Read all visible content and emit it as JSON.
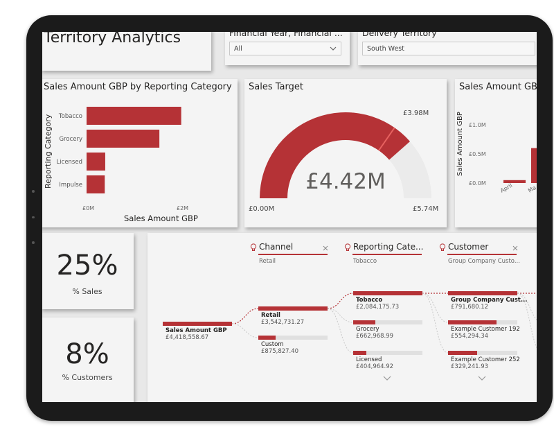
{
  "colors": {
    "accent": "#b53236",
    "panel": "#f4f4f4",
    "canvas": "#e8e8e8",
    "bezel": "#1b1b1b"
  },
  "header": {
    "title": "Territory Analytics"
  },
  "slicers": [
    {
      "label": "Financial Year, Financial ...",
      "value": "All",
      "icon": "chevron-down-icon"
    },
    {
      "label": "Delivery Territory",
      "value": "South West"
    }
  ],
  "bar_chart": {
    "title": "Sales Amount GBP by Reporting Category",
    "ylabel": "Reporting Category",
    "xlabel": "Sales Amount GBP",
    "ticks": [
      "£0M",
      "£2M"
    ]
  },
  "gauge": {
    "title": "Sales Target",
    "value_label": "£4.42M",
    "min_label": "£0.00M",
    "max_label": "£5.74M",
    "target_label": "£3.98M",
    "value": 4.42,
    "min": 0,
    "max": 5.74,
    "target": 3.98
  },
  "column_chart": {
    "title": "Sales Amount GBP",
    "ylabel": "Sales Amount GBP",
    "ticks": [
      "£1.0M",
      "£0.5M",
      "£0.0M"
    ],
    "xlabels": [
      "April",
      "Ma"
    ]
  },
  "kpis": [
    {
      "value": "25%",
      "label": "% Sales"
    },
    {
      "value": "8%",
      "label": "% Customers"
    }
  ],
  "decomp_tree": {
    "levels": [
      {
        "header": "Channel",
        "selected": "Retail",
        "icon": "lightbulb-icon"
      },
      {
        "header": "Reporting Cate...",
        "selected": "Tobacco",
        "icon": "lightbulb-icon"
      },
      {
        "header": "Customer",
        "selected": "Group Company Custo...",
        "icon": "lightbulb-icon"
      }
    ],
    "root": {
      "label": "Sales Amount GBP",
      "value": "£4,418,558.67"
    },
    "channel_nodes": [
      {
        "label": "Retail",
        "value": "£3,542,731.27",
        "fraction": 1.0
      },
      {
        "label": "Custom",
        "value": "£875,827.40",
        "fraction": 0.25
      }
    ],
    "category_nodes": [
      {
        "label": "Tobacco",
        "value": "£2,084,175.73",
        "fraction": 1.0
      },
      {
        "label": "Grocery",
        "value": "£662,968.99",
        "fraction": 0.32
      },
      {
        "label": "Licensed",
        "value": "£404,964.92",
        "fraction": 0.19
      }
    ],
    "customer_nodes": [
      {
        "label": "Group Company Cust...",
        "value": "£791,680.12",
        "fraction": 1.0
      },
      {
        "label": "Example Customer 192",
        "value": "£554,294.34",
        "fraction": 0.7
      },
      {
        "label": "Example Customer 252",
        "value": "£329,241.93",
        "fraction": 0.42
      }
    ]
  },
  "chart_data": [
    {
      "type": "bar",
      "title": "Sales Amount GBP by Reporting Category",
      "categories": [
        "Tobacco",
        "Grocery",
        "Licensed",
        "Impulse"
      ],
      "values": [
        2.08,
        1.6,
        0.41,
        0.4
      ],
      "xlabel": "Sales Amount GBP",
      "ylabel": "Reporting Category",
      "xlim": [
        0,
        2.1
      ]
    },
    {
      "type": "bar",
      "title": "Sales Amount GBP",
      "categories": [
        "April",
        "Ma"
      ],
      "values": [
        0.05,
        0.6
      ],
      "ylabel": "Sales Amount GBP",
      "ylim": [
        0,
        1.0
      ]
    }
  ]
}
